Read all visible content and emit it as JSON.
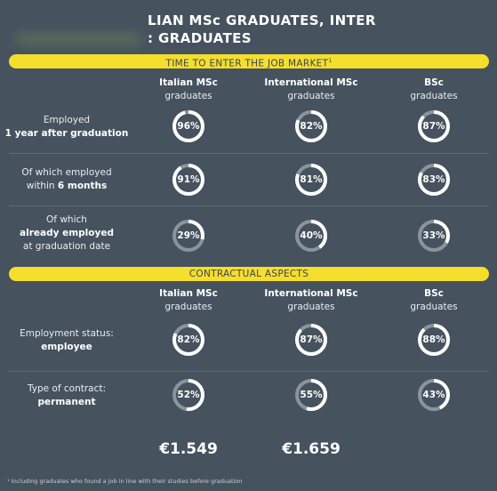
{
  "header": {
    "title_line1": "LIAN MSc GRADUATES, INTER",
    "title_line2": ": GRADUATES"
  },
  "section_job_market": {
    "band_label": "TIME TO ENTER THE JOB MARKET",
    "band_footnote_mark": "1",
    "columns": [
      {
        "bold": "Italian MSc",
        "sub": "graduates"
      },
      {
        "bold": "International MSc",
        "sub": "graduates"
      },
      {
        "bold": "BSc",
        "sub": "graduates"
      }
    ],
    "rows": [
      {
        "label_line1": "Employed",
        "label_line2": "1 year after graduation",
        "label_line3": "",
        "values": [
          "96%",
          "82%",
          "87%"
        ]
      },
      {
        "label_line1": "Of which employed",
        "label_line2": "within 6 months",
        "label_line3": "",
        "values": [
          "91%",
          "81%",
          "83%"
        ]
      },
      {
        "label_line1": "Of which",
        "label_line2": "already employed",
        "label_line3": "at graduation date",
        "values": [
          "29%",
          "40%",
          "33%"
        ]
      }
    ]
  },
  "section_contract": {
    "band_label": "CONTRACTUAL ASPECTS",
    "columns": [
      {
        "bold": "Italian MSc",
        "sub": "graduates"
      },
      {
        "bold": "International MSc",
        "sub": "graduates"
      },
      {
        "bold": "BSc",
        "sub": "graduates"
      }
    ],
    "rows": [
      {
        "label_line1": "Employment status:",
        "label_line2": "employee",
        "values": [
          "82%",
          "87%",
          "88%"
        ]
      },
      {
        "label_line1": "Type of contract:",
        "label_line2": "permanent",
        "values": [
          "52%",
          "55%",
          "43%"
        ]
      }
    ],
    "salaries": [
      "€1.549",
      "€1.659"
    ]
  },
  "footnote": "¹ Including graduates who found a job in line with their studies before graduation",
  "colors": {
    "background": "#46525e",
    "band_yellow": "#f5de2c",
    "ring_fill": "#ffffff",
    "ring_track": "#8a949d"
  }
}
